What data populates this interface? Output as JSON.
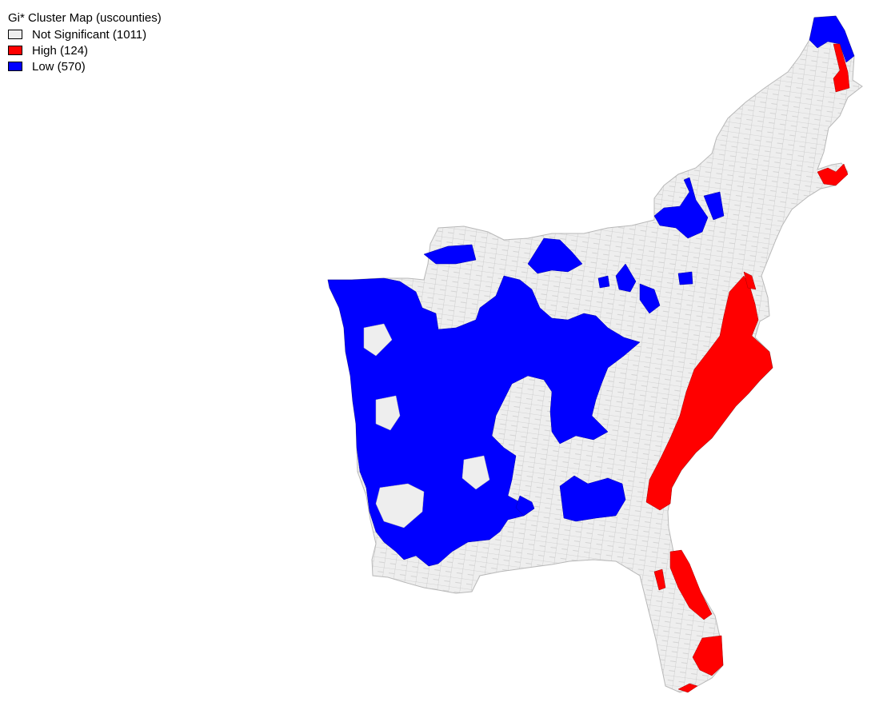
{
  "legend": {
    "title": "Gi* Cluster Map (uscounties)",
    "items": [
      {
        "label": "Not Significant (1011)",
        "color": "#eeeeee",
        "count": 1011
      },
      {
        "label": "High (124)",
        "color": "#ff0000",
        "count": 124
      },
      {
        "label": "Low (570)",
        "color": "#0000ff",
        "count": 570
      }
    ]
  },
  "map": {
    "county_border_color": "#b8b8b8",
    "region_names": [
      "eastern-us-base",
      "low-cluster-central",
      "low-cluster-ne",
      "high-cluster-coast",
      "high-cluster-florida"
    ]
  }
}
